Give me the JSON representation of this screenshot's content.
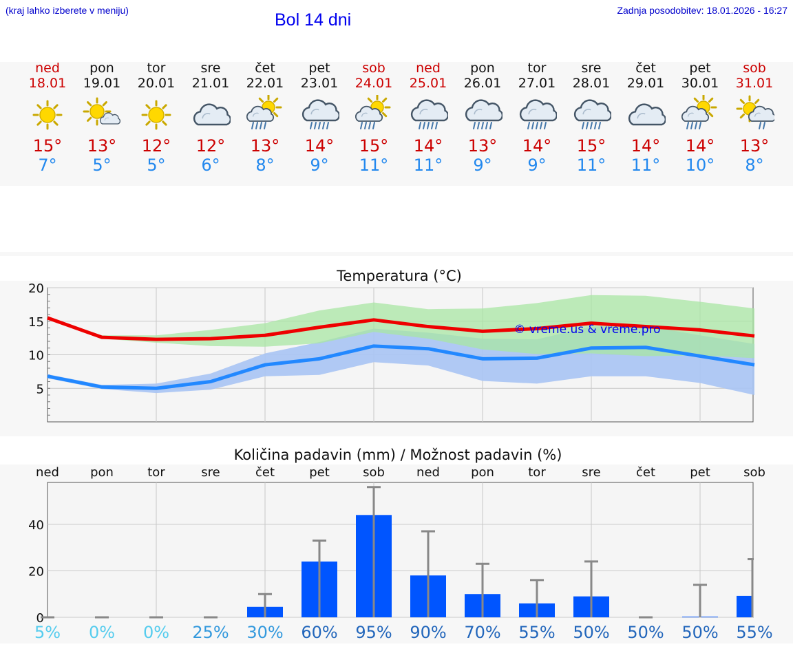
{
  "header": {
    "hint": "(kraj lahko izberete v meniju)",
    "title": "Bol 14 dni",
    "updated": "Zadnja posodobitev: 18.01.2026 - 16:27"
  },
  "days": [
    {
      "name": "ned",
      "date": "18.01",
      "icon": "sunny-icon",
      "max": "15°",
      "min": "7°",
      "weekend": true
    },
    {
      "name": "pon",
      "date": "19.01",
      "icon": "sun-cloud-icon",
      "max": "13°",
      "min": "5°",
      "weekend": false
    },
    {
      "name": "tor",
      "date": "20.01",
      "icon": "sunny-icon",
      "max": "12°",
      "min": "5°",
      "weekend": false
    },
    {
      "name": "sre",
      "date": "21.01",
      "icon": "cloudy-icon",
      "max": "12°",
      "min": "6°",
      "weekend": false
    },
    {
      "name": "čet",
      "date": "22.01",
      "icon": "sun-rain-icon",
      "max": "13°",
      "min": "8°",
      "weekend": false
    },
    {
      "name": "pet",
      "date": "23.01",
      "icon": "rain-icon",
      "max": "14°",
      "min": "9°",
      "weekend": false
    },
    {
      "name": "sob",
      "date": "24.01",
      "icon": "sun-rain-icon",
      "max": "15°",
      "min": "11°",
      "weekend": true
    },
    {
      "name": "ned",
      "date": "25.01",
      "icon": "rain-icon",
      "max": "14°",
      "min": "11°",
      "weekend": true
    },
    {
      "name": "pon",
      "date": "26.01",
      "icon": "rain-icon",
      "max": "13°",
      "min": "9°",
      "weekend": false
    },
    {
      "name": "tor",
      "date": "27.01",
      "icon": "rain-icon",
      "max": "14°",
      "min": "9°",
      "weekend": false
    },
    {
      "name": "sre",
      "date": "28.01",
      "icon": "rain-icon",
      "max": "15°",
      "min": "11°",
      "weekend": false
    },
    {
      "name": "čet",
      "date": "29.01",
      "icon": "cloudy-icon",
      "max": "14°",
      "min": "11°",
      "weekend": false
    },
    {
      "name": "pet",
      "date": "30.01",
      "icon": "sun-rain-icon",
      "max": "14°",
      "min": "10°",
      "weekend": false
    },
    {
      "name": "sob",
      "date": "31.01",
      "icon": "sun-rain-light-icon",
      "max": "13°",
      "min": "8°",
      "weekend": true
    }
  ],
  "colors": {
    "max_text": "#cc0000",
    "min_text": "#2288ee",
    "max_line": "#ee0000",
    "min_line": "#2288ff",
    "max_band": "#a8e6a3",
    "min_band": "#a8c4f4",
    "overlap_band": "#7cbfa8",
    "bar": "#0055ff",
    "whisker": "#888888"
  },
  "chart_data": [
    {
      "type": "line",
      "title": "Temperatura (°C)",
      "xlabel": "",
      "ylabel": "",
      "ylim": [
        0,
        20
      ],
      "yticks": [
        5,
        10,
        15,
        20
      ],
      "categories": [
        "ned",
        "pon",
        "tor",
        "sre",
        "čet",
        "pet",
        "sob",
        "ned",
        "pon",
        "tor",
        "sre",
        "čet",
        "pet",
        "sob"
      ],
      "watermark": "© vreme.us & vreme.pro",
      "series": [
        {
          "name": "max",
          "values": [
            15.5,
            12.6,
            12.3,
            12.4,
            12.9,
            14.1,
            15.2,
            14.2,
            13.5,
            13.9,
            14.7,
            14.2,
            13.7,
            12.8
          ],
          "band_low": [
            15.3,
            12.4,
            11.8,
            11.3,
            11.2,
            11.7,
            13.4,
            12.4,
            10.8,
            10.1,
            10.2,
            9.8,
            9.9,
            9.5
          ],
          "band_high": [
            15.7,
            12.9,
            12.9,
            13.7,
            14.7,
            16.6,
            17.8,
            16.8,
            16.9,
            17.7,
            18.9,
            18.8,
            17.9,
            16.9
          ]
        },
        {
          "name": "min",
          "values": [
            6.8,
            5.2,
            5.0,
            6.0,
            8.5,
            9.4,
            11.3,
            10.9,
            9.4,
            9.5,
            11.0,
            11.1,
            9.8,
            8.5
          ],
          "band_low": [
            6.5,
            4.9,
            4.3,
            4.8,
            6.8,
            7.0,
            8.9,
            8.4,
            6.1,
            5.7,
            6.8,
            6.8,
            5.8,
            4.0
          ],
          "band_high": [
            7.1,
            5.5,
            5.7,
            7.2,
            10.2,
            11.9,
            13.9,
            13.3,
            12.4,
            12.3,
            14.2,
            14.3,
            12.9,
            11.6
          ]
        }
      ]
    },
    {
      "type": "bar",
      "title": "Količina padavin (mm) / Možnost padavin (%)",
      "xlabel": "",
      "ylabel": "",
      "ylim": [
        0,
        58
      ],
      "yticks": [
        0,
        20,
        40
      ],
      "categories": [
        "ned",
        "pon",
        "tor",
        "sre",
        "čet",
        "pet",
        "sob",
        "ned",
        "pon",
        "tor",
        "sre",
        "čet",
        "pet",
        "sob"
      ],
      "values": [
        0,
        0,
        0,
        0,
        4.5,
        24,
        44,
        18,
        10,
        6,
        9,
        0,
        0.3,
        9.2
      ],
      "error_high": [
        0,
        0,
        0,
        0,
        10,
        33,
        56,
        37,
        23,
        16,
        24,
        0,
        14,
        25
      ],
      "probability": [
        "5%",
        "0%",
        "0%",
        "25%",
        "30%",
        "60%",
        "95%",
        "90%",
        "70%",
        "55%",
        "50%",
        "50%",
        "50%",
        "55%"
      ],
      "probability_colors": [
        "#55ccee",
        "#55ccee",
        "#55ccee",
        "#3399dd",
        "#3399dd",
        "#2266bb",
        "#2266bb",
        "#2266bb",
        "#2266bb",
        "#2266bb",
        "#2266bb",
        "#2266bb",
        "#2266bb",
        "#2266bb"
      ]
    }
  ]
}
